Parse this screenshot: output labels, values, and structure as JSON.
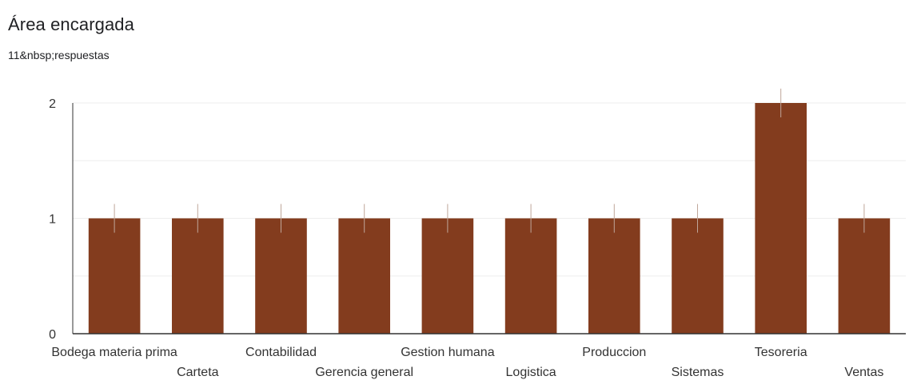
{
  "header": {
    "title": "Área encargada",
    "responses": "11&nbsp;respuestas"
  },
  "chart_data": {
    "type": "bar",
    "title": "Área encargada",
    "subtitle": "11&nbsp;respuestas",
    "categories": [
      "Bodega materia prima",
      "Carteta",
      "Contabilidad",
      "Gerencia general",
      "Gestion humana",
      "Logistica",
      "Produccion",
      "Sistemas",
      "Tesoreria",
      "Ventas"
    ],
    "values": [
      1,
      1,
      1,
      1,
      1,
      1,
      1,
      1,
      2,
      1
    ],
    "ylim": [
      0,
      2
    ],
    "yticks": [
      0,
      1,
      2
    ],
    "grid": true,
    "label_layout": "staggered",
    "bar_color": "#833c1e",
    "grid_color": "#eeeeee",
    "axis_color": "#333333"
  }
}
